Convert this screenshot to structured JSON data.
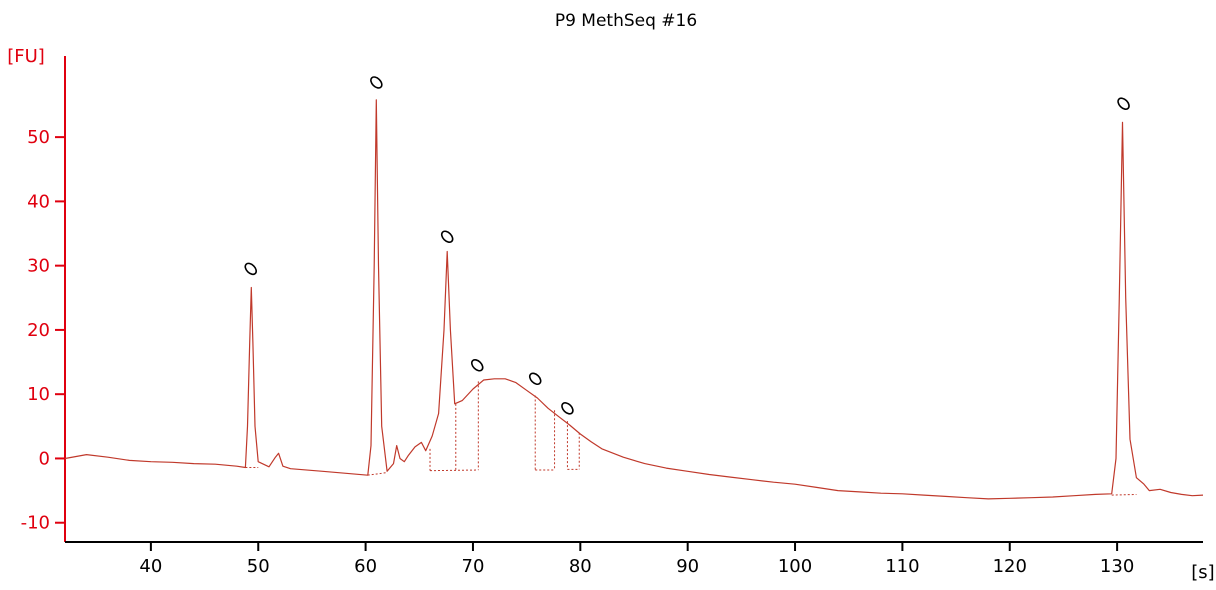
{
  "chart_data": {
    "type": "line",
    "title": "P9 MethSeq #16",
    "ylabel": "[FU]",
    "xlabel": "[s]",
    "xlim": [
      32,
      138
    ],
    "ylim": [
      -13,
      62
    ],
    "x_ticks": [
      40,
      50,
      60,
      70,
      80,
      90,
      100,
      110,
      120,
      130
    ],
    "y_ticks": [
      -10,
      0,
      10,
      20,
      30,
      40,
      50
    ],
    "colors": {
      "trace": "#c0392b",
      "axis_y": "#e0000f",
      "axis_x": "#000000",
      "marker": "#000000"
    },
    "series": [
      {
        "points": [
          [
            32,
            0.0
          ],
          [
            34,
            0.6
          ],
          [
            36,
            0.2
          ],
          [
            38,
            -0.3
          ],
          [
            40,
            -0.5
          ],
          [
            42,
            -0.6
          ],
          [
            44,
            -0.8
          ],
          [
            46,
            -0.9
          ],
          [
            48,
            -1.2
          ],
          [
            48.8,
            -1.4
          ],
          [
            49.0,
            5.0
          ],
          [
            49.2,
            18.0
          ],
          [
            49.35,
            26.6
          ],
          [
            49.5,
            18.0
          ],
          [
            49.7,
            5.0
          ],
          [
            50.0,
            -0.5
          ],
          [
            51.0,
            -1.3
          ],
          [
            51.6,
            0.2
          ],
          [
            51.9,
            0.8
          ],
          [
            52.3,
            -1.2
          ],
          [
            53,
            -1.6
          ],
          [
            56,
            -2.0
          ],
          [
            60.2,
            -2.6
          ],
          [
            60.5,
            2.0
          ],
          [
            60.8,
            30.0
          ],
          [
            61.0,
            55.8
          ],
          [
            61.2,
            30.0
          ],
          [
            61.5,
            5.0
          ],
          [
            62.0,
            -2.0
          ],
          [
            62.6,
            -0.8
          ],
          [
            62.9,
            2.0
          ],
          [
            63.2,
            0.0
          ],
          [
            63.6,
            -0.5
          ],
          [
            64.0,
            0.5
          ],
          [
            64.6,
            1.8
          ],
          [
            65.2,
            2.5
          ],
          [
            65.6,
            1.2
          ],
          [
            66.2,
            3.5
          ],
          [
            66.8,
            7.0
          ],
          [
            67.3,
            20.0
          ],
          [
            67.6,
            32.2
          ],
          [
            67.9,
            20.0
          ],
          [
            68.3,
            8.5
          ],
          [
            69.0,
            9.0
          ],
          [
            70.0,
            10.8
          ],
          [
            71.0,
            12.2
          ],
          [
            72.0,
            12.4
          ],
          [
            73.0,
            12.4
          ],
          [
            74.0,
            11.8
          ],
          [
            75.0,
            10.6
          ],
          [
            76.0,
            9.4
          ],
          [
            77.0,
            7.8
          ],
          [
            78.0,
            6.5
          ],
          [
            79.0,
            5.2
          ],
          [
            80.0,
            3.8
          ],
          [
            81.0,
            2.6
          ],
          [
            82.0,
            1.5
          ],
          [
            84.0,
            0.2
          ],
          [
            86.0,
            -0.8
          ],
          [
            88.0,
            -1.5
          ],
          [
            90.0,
            -2.0
          ],
          [
            92.0,
            -2.5
          ],
          [
            94.0,
            -2.9
          ],
          [
            96.0,
            -3.3
          ],
          [
            98.0,
            -3.7
          ],
          [
            100.0,
            -4.0
          ],
          [
            102.0,
            -4.5
          ],
          [
            104.0,
            -5.0
          ],
          [
            106.0,
            -5.2
          ],
          [
            108.0,
            -5.4
          ],
          [
            110.0,
            -5.5
          ],
          [
            112.0,
            -5.7
          ],
          [
            114.0,
            -5.9
          ],
          [
            116.0,
            -6.1
          ],
          [
            118.0,
            -6.3
          ],
          [
            120.0,
            -6.2
          ],
          [
            122.0,
            -6.1
          ],
          [
            124.0,
            -6.0
          ],
          [
            126.0,
            -5.8
          ],
          [
            128.0,
            -5.6
          ],
          [
            129.5,
            -5.5
          ],
          [
            129.9,
            0.0
          ],
          [
            130.2,
            25.0
          ],
          [
            130.5,
            52.3
          ],
          [
            130.8,
            25.0
          ],
          [
            131.2,
            3.0
          ],
          [
            131.8,
            -3.0
          ],
          [
            132.5,
            -4.0
          ],
          [
            133.0,
            -5.0
          ],
          [
            134.0,
            -4.8
          ],
          [
            135.0,
            -5.3
          ],
          [
            136.0,
            -5.6
          ],
          [
            137.0,
            -5.8
          ],
          [
            138.0,
            -5.7
          ]
        ]
      }
    ],
    "baseline_segments": [
      [
        [
          48.8,
          -1.4
        ],
        [
          50.0,
          -1.4
        ]
      ],
      [
        [
          60.2,
          -2.6
        ],
        [
          62.0,
          -2.2
        ]
      ],
      [
        [
          66.0,
          -1.9
        ],
        [
          70.5,
          -1.8
        ]
      ],
      [
        [
          75.8,
          -1.8
        ],
        [
          77.6,
          -1.8
        ]
      ],
      [
        [
          78.8,
          -1.7
        ],
        [
          79.9,
          -1.7
        ]
      ],
      [
        [
          129.5,
          -5.7
        ],
        [
          131.8,
          -5.6
        ]
      ]
    ],
    "region_drops": [
      [
        66.0,
        1.5,
        -1.9
      ],
      [
        68.4,
        8.5,
        -1.8
      ],
      [
        70.5,
        12.0,
        -1.8
      ],
      [
        75.8,
        9.8,
        -1.8
      ],
      [
        77.6,
        7.5,
        -1.8
      ],
      [
        78.8,
        5.8,
        -1.7
      ],
      [
        79.9,
        4.0,
        -1.7
      ]
    ],
    "peak_markers": [
      [
        49.3,
        29.5
      ],
      [
        61.0,
        58.5
      ],
      [
        67.6,
        34.5
      ],
      [
        70.4,
        14.5
      ],
      [
        75.8,
        12.4
      ],
      [
        78.8,
        7.8
      ],
      [
        130.6,
        55.2
      ]
    ],
    "grid": false,
    "legend": "none"
  }
}
